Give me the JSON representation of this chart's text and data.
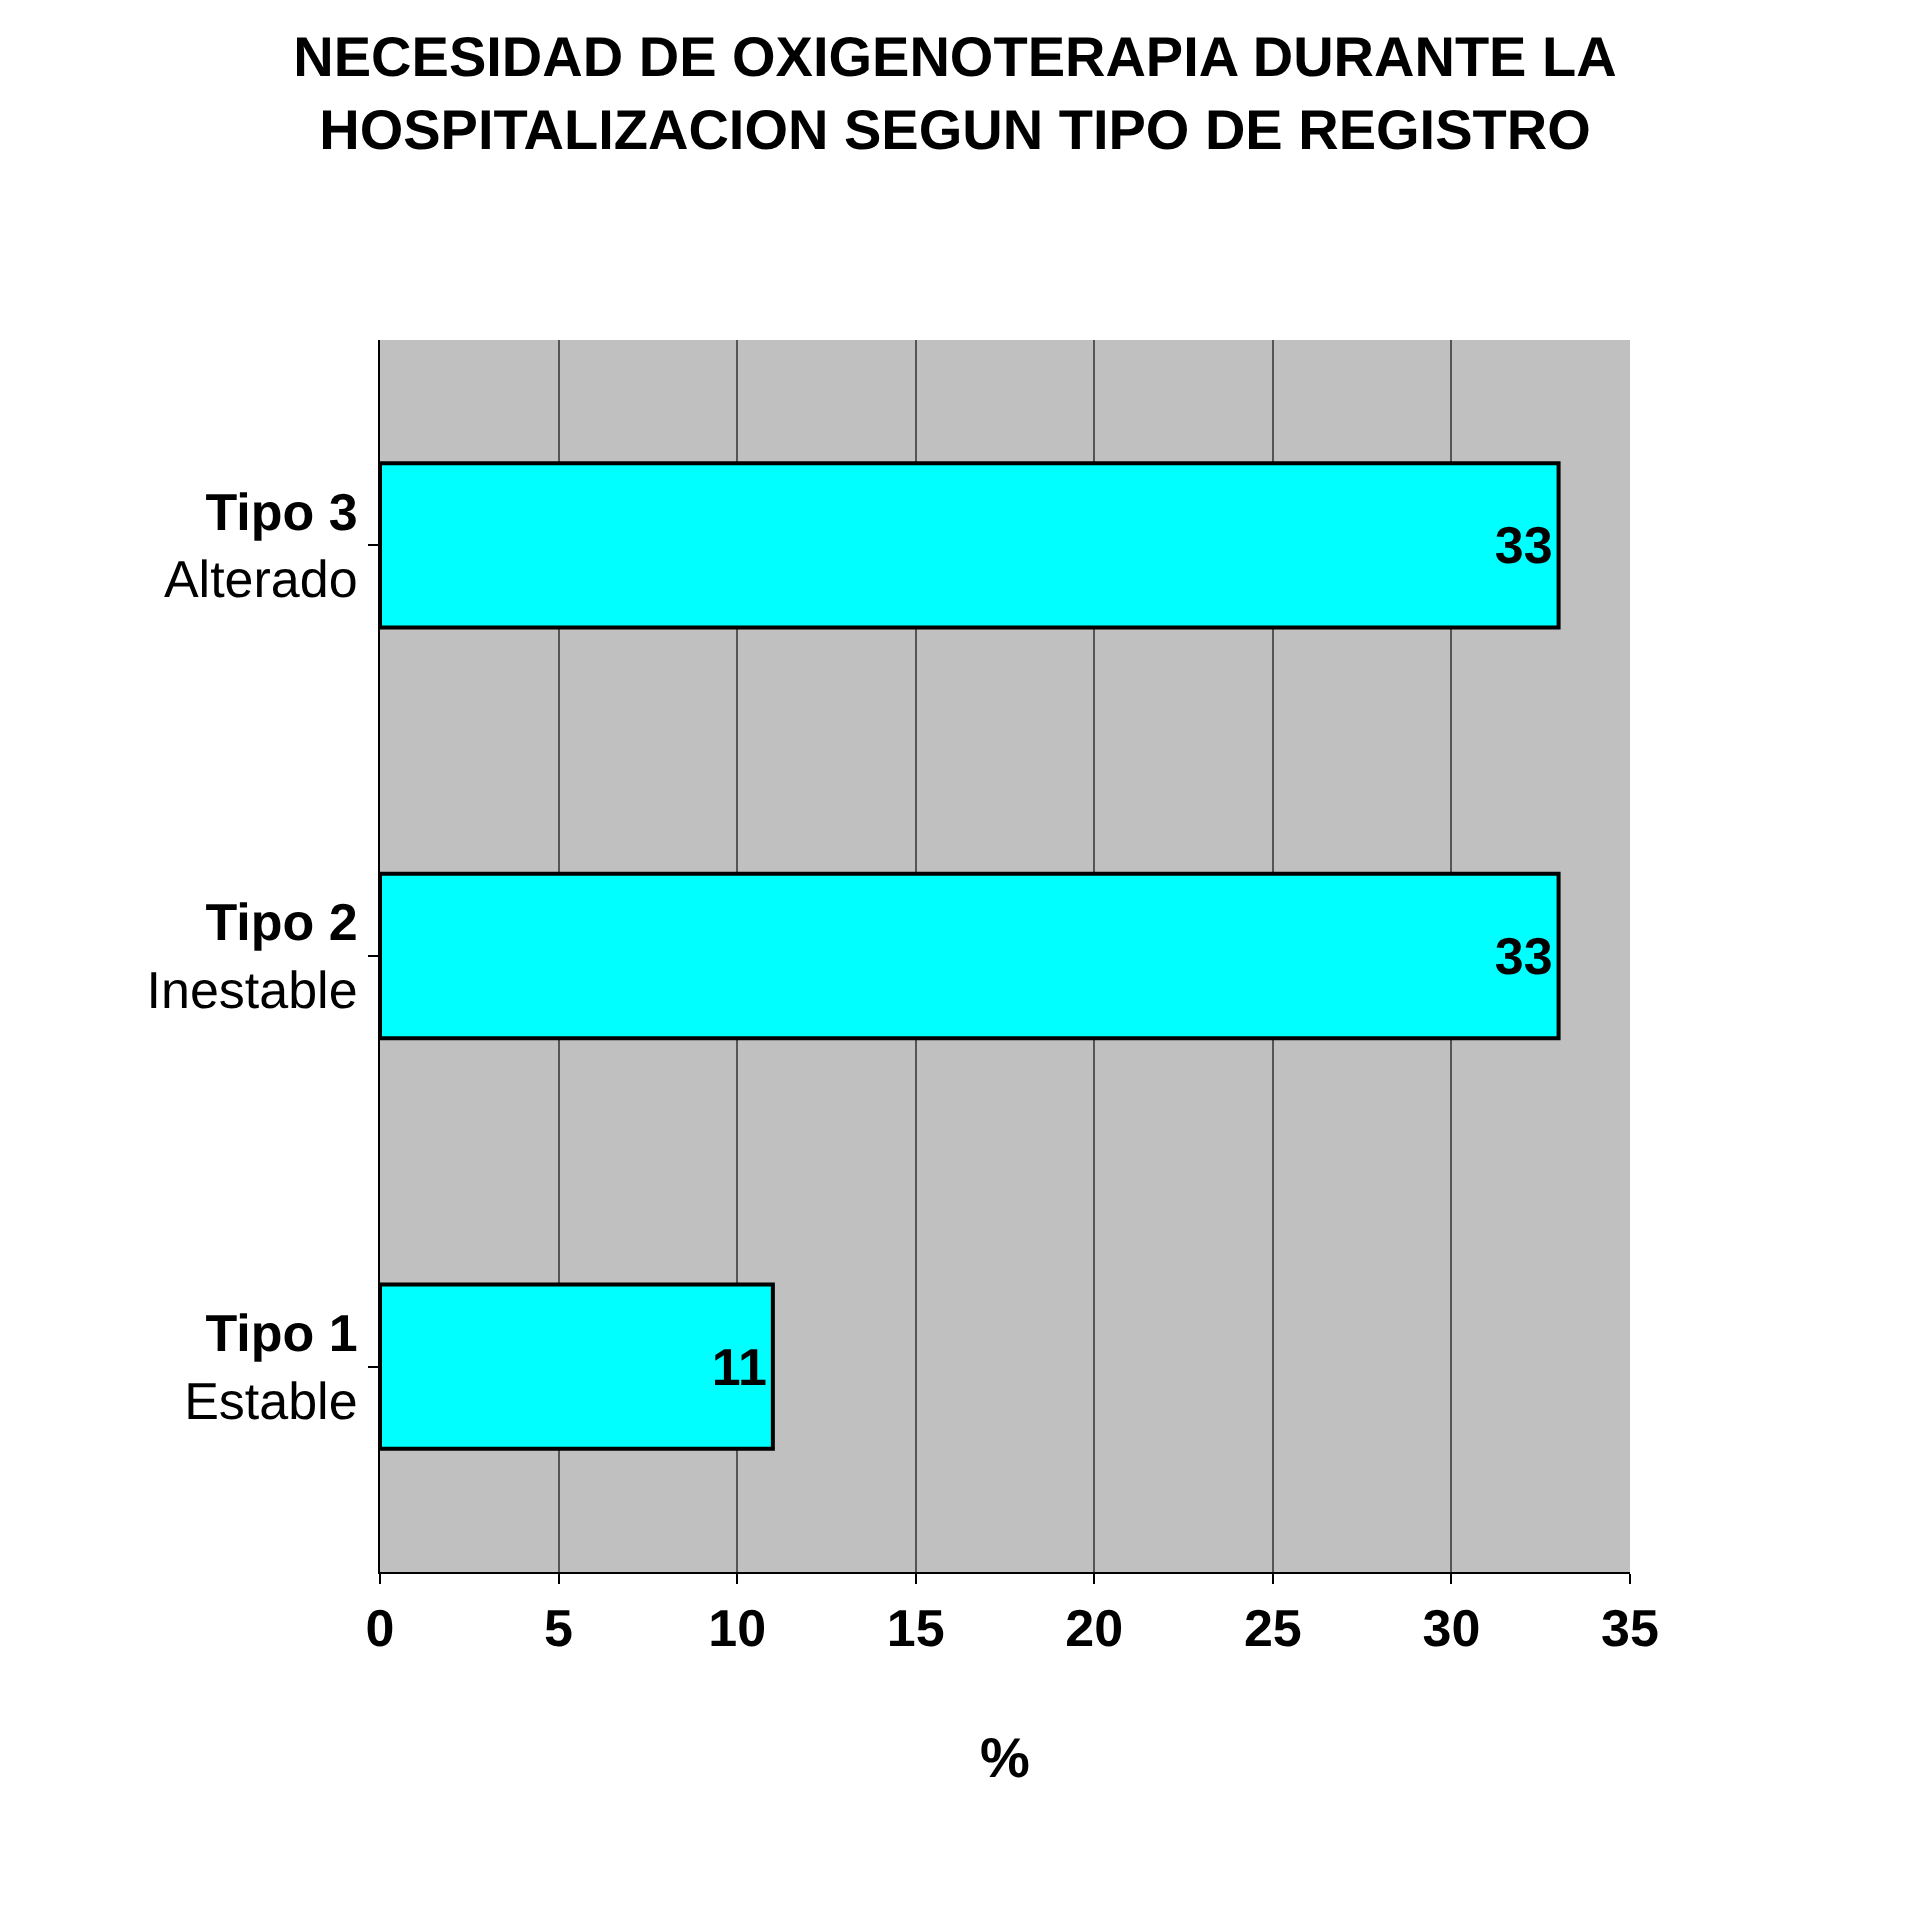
{
  "chart_data": {
    "type": "bar",
    "orientation": "horizontal",
    "title": "NECESIDAD DE OXIGENOTERAPIA DURANTE LA HOSPITALIZACION SEGUN TIPO DE REGISTRO",
    "xlabel": "%",
    "categories": [
      "Tipo 3\nAlterado",
      "Tipo 2\nInestable",
      "Tipo 1\nEstable"
    ],
    "values": [
      33,
      33,
      11
    ],
    "color": "#00ffff",
    "data_labels": true,
    "xlim": [
      0,
      35
    ],
    "xticks": [
      0,
      5,
      10,
      15,
      20,
      25,
      30,
      35
    ],
    "grid": "x",
    "legend": false
  }
}
